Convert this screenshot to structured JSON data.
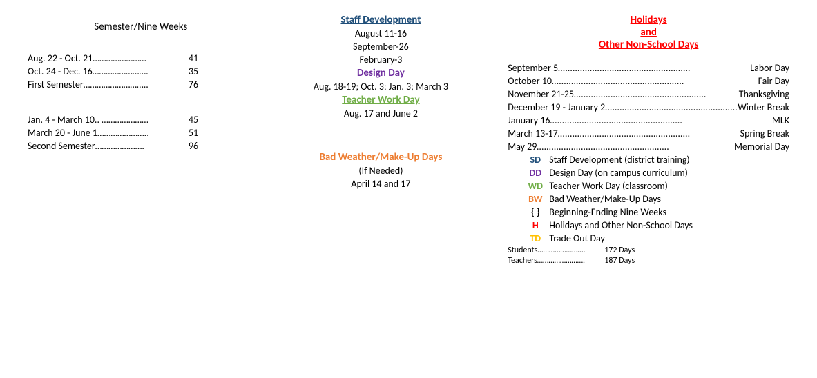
{
  "semester": {
    "heading": "Semester/Nine Weeks",
    "rows1": [
      {
        "label": "Aug. 22 - Oct. 21……………………",
        "value": "41"
      },
      {
        "label": "Oct. 24 - Dec. 16…………………….",
        "value": "35"
      },
      {
        "label": "First Semester………………………..",
        "value": "76"
      }
    ],
    "rows2": [
      {
        "label": "Jan. 4 - March 10.. …………………",
        "value": "45"
      },
      {
        "label": "March 20 - June 1…………………..",
        "value": "51"
      },
      {
        "label": "Second Semester………………….",
        "value": "96"
      }
    ]
  },
  "middle": {
    "staff_dev_heading": "Staff Development",
    "staff_dev_lines": [
      "August 11-16",
      "September-26",
      "February-3"
    ],
    "design_day_heading": "Design Day",
    "design_day_line": "Aug. 18-19; Oct.    3; Jan. 3; March 3",
    "teacher_work_heading": "Teacher Work Day",
    "teacher_work_line": "Aug. 17 and June 2",
    "bad_weather_heading": "Bad Weather/Make-Up Days",
    "bad_weather_sub": "(If Needed)",
    "bad_weather_line": "April 14 and 17"
  },
  "holidays": {
    "heading1": "Holidays",
    "heading2": "and",
    "heading3": "Other Non-School Days",
    "rows": [
      {
        "label": "September 5",
        "name": "Labor Day"
      },
      {
        "label": "October 10",
        "name": "Fair Day"
      },
      {
        "label": "November 21-25",
        "name": "Thanksgiving"
      },
      {
        "label": " December 19 - January 2",
        "name": " Winter Break"
      },
      {
        "label": "January 16",
        "name": "MLK"
      },
      {
        "label": "March 13-17",
        "name": "Spring Break"
      },
      {
        "label": "May 29",
        "name": "Memorial Day"
      }
    ],
    "legend": [
      {
        "code": "SD",
        "cls": "code-sd",
        "desc": "Staff Development (district training)"
      },
      {
        "code": "DD",
        "cls": "code-dd",
        "desc": "Design Day (on campus curriculum)"
      },
      {
        "code": "WD",
        "cls": "code-wd",
        "desc": "Teacher Work Day (classroom)"
      },
      {
        "code": "BW",
        "cls": "code-bw",
        "desc": "Bad Weather/Make-Up Days"
      },
      {
        "code": "{ }",
        "cls": "code-br",
        "desc": "Beginning-Ending Nine Weeks"
      },
      {
        "code": "H",
        "cls": "code-h",
        "desc": "Holidays and Other Non-School Days"
      },
      {
        "code": "TD",
        "cls": "code-td",
        "desc": "Trade Out Day"
      }
    ],
    "totals": [
      {
        "label": "Students…………………….",
        "value": "172 Days"
      },
      {
        "label": "Teachers…………………….",
        "value": "187 Days"
      }
    ]
  },
  "dots": "………………………………………………"
}
